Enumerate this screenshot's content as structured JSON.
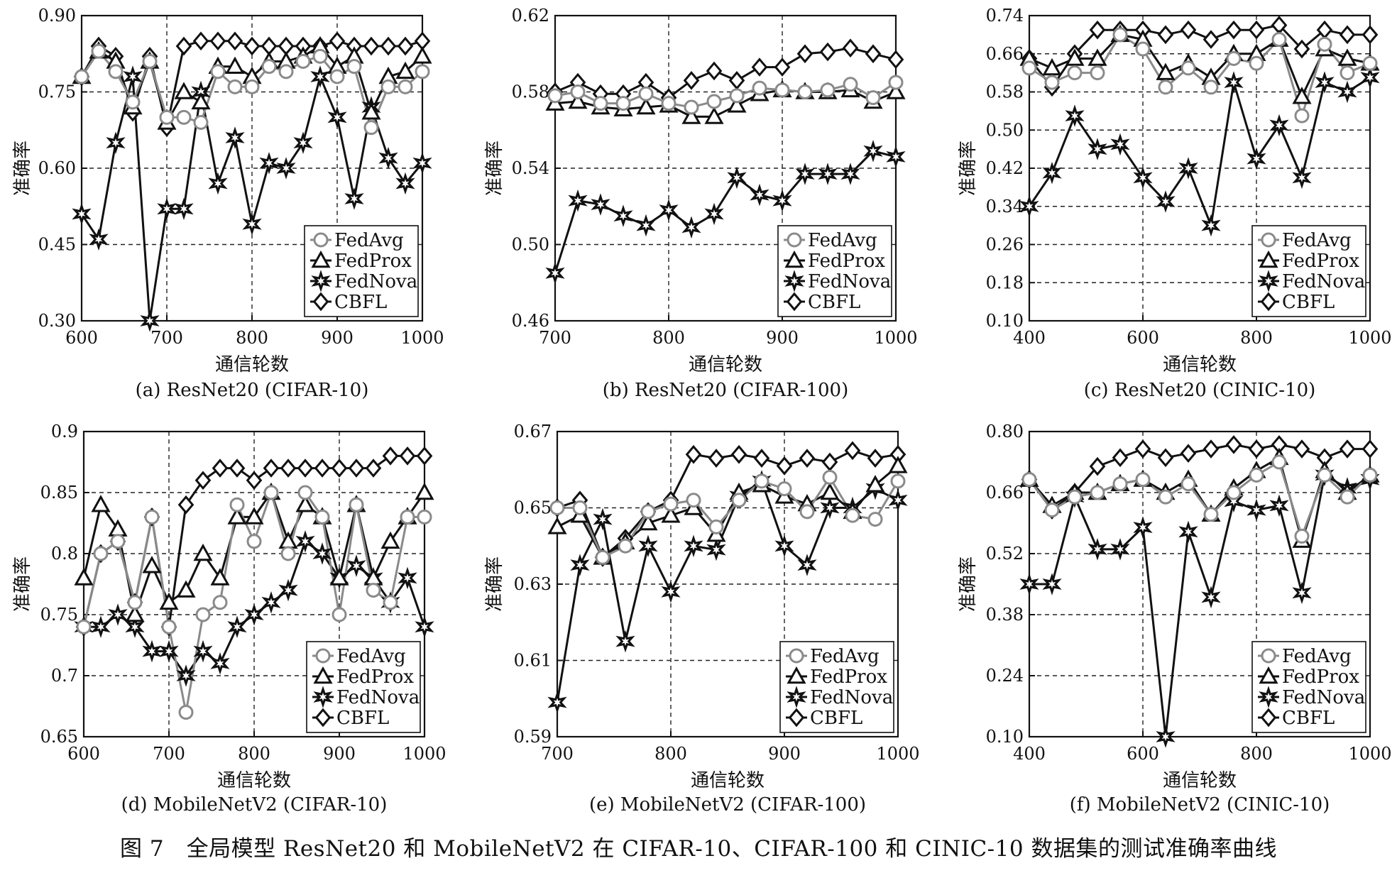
{
  "figure_caption": "图 7　全局模型 ResNet20 和 MobileNetV2 在 CIFAR-10、CIFAR-100 和 CINIC-10 数据集的测试准确率曲线",
  "legend_labels": [
    "FedAvg",
    "FedProx",
    "FedNova",
    "CBFL"
  ],
  "chart_data": [
    {
      "type": "line",
      "caption": "(a) ResNet20 (CIFAR-10)",
      "xlabel": "通信轮数",
      "ylabel": "准确率",
      "xlim": [
        600,
        1000
      ],
      "ylim": [
        0.3,
        0.9
      ],
      "xticks": [
        600,
        700,
        800,
        900,
        1000
      ],
      "yticks": [
        "0.30",
        "0.45",
        "0.60",
        "0.75",
        "0.90"
      ],
      "grid": true,
      "legend_position": "bottom-right",
      "x": [
        600,
        620,
        640,
        660,
        680,
        700,
        720,
        740,
        760,
        780,
        800,
        820,
        840,
        860,
        880,
        900,
        920,
        940,
        960,
        980,
        1000
      ],
      "series": [
        {
          "name": "FedAvg",
          "marker": "circle",
          "color": "#8a8a8a",
          "values": [
            0.78,
            0.83,
            0.79,
            0.73,
            0.81,
            0.7,
            0.7,
            0.69,
            0.79,
            0.76,
            0.76,
            0.8,
            0.79,
            0.81,
            0.82,
            0.78,
            0.8,
            0.68,
            0.76,
            0.76,
            0.79
          ]
        },
        {
          "name": "FedProx",
          "marker": "triangle",
          "color": "#111111",
          "values": [
            0.78,
            0.83,
            0.81,
            0.72,
            0.81,
            0.69,
            0.75,
            0.73,
            0.8,
            0.8,
            0.78,
            0.81,
            0.81,
            0.82,
            0.84,
            0.8,
            0.82,
            0.71,
            0.78,
            0.79,
            0.82
          ]
        },
        {
          "name": "FedNova",
          "marker": "star",
          "color": "#111111",
          "values": [
            0.51,
            0.46,
            0.65,
            0.78,
            0.3,
            0.52,
            0.52,
            0.75,
            0.57,
            0.66,
            0.49,
            0.61,
            0.6,
            0.65,
            0.78,
            0.7,
            0.54,
            0.72,
            0.62,
            0.57,
            0.61
          ]
        },
        {
          "name": "CBFL",
          "marker": "diamond",
          "color": "#111111",
          "values": [
            0.78,
            0.84,
            0.82,
            0.71,
            0.82,
            0.68,
            0.84,
            0.85,
            0.85,
            0.85,
            0.84,
            0.84,
            0.84,
            0.84,
            0.84,
            0.85,
            0.84,
            0.84,
            0.84,
            0.84,
            0.85
          ]
        }
      ]
    },
    {
      "type": "line",
      "caption": "(b) ResNet20 (CIFAR-100)",
      "xlabel": "通信轮数",
      "ylabel": "准确率",
      "xlim": [
        700,
        1000
      ],
      "ylim": [
        0.46,
        0.62
      ],
      "xticks": [
        700,
        800,
        900,
        1000
      ],
      "yticks": [
        "0.46",
        "0.50",
        "0.54",
        "0.58",
        "0.62"
      ],
      "grid": true,
      "legend_position": "bottom-right",
      "x": [
        700,
        720,
        740,
        760,
        780,
        800,
        820,
        840,
        860,
        880,
        900,
        920,
        940,
        960,
        980,
        1000
      ],
      "series": [
        {
          "name": "FedAvg",
          "marker": "circle",
          "color": "#8a8a8a",
          "values": [
            0.578,
            0.58,
            0.574,
            0.574,
            0.579,
            0.574,
            0.572,
            0.575,
            0.578,
            0.582,
            0.581,
            0.58,
            0.581,
            0.584,
            0.577,
            0.585
          ]
        },
        {
          "name": "FedProx",
          "marker": "triangle",
          "color": "#111111",
          "values": [
            0.574,
            0.575,
            0.572,
            0.571,
            0.572,
            0.573,
            0.567,
            0.567,
            0.573,
            0.579,
            0.581,
            0.58,
            0.58,
            0.581,
            0.575,
            0.58
          ]
        },
        {
          "name": "FedNova",
          "marker": "star",
          "color": "#111111",
          "values": [
            0.485,
            0.523,
            0.521,
            0.515,
            0.51,
            0.518,
            0.509,
            0.516,
            0.535,
            0.526,
            0.523,
            0.537,
            0.537,
            0.537,
            0.549,
            0.546
          ]
        },
        {
          "name": "CBFL",
          "marker": "diamond",
          "color": "#111111",
          "values": [
            0.58,
            0.585,
            0.579,
            0.579,
            0.585,
            0.577,
            0.586,
            0.591,
            0.586,
            0.593,
            0.593,
            0.6,
            0.601,
            0.603,
            0.6,
            0.597
          ]
        }
      ]
    },
    {
      "type": "line",
      "caption": "(c) ResNet20 (CINIC-10)",
      "xlabel": "通信轮数",
      "ylabel": "准确率",
      "xlim": [
        400,
        1000
      ],
      "ylim": [
        0.1,
        0.74
      ],
      "xticks": [
        400,
        600,
        800,
        1000
      ],
      "yticks": [
        "0.10",
        "0.18",
        "0.26",
        "0.34",
        "0.42",
        "0.50",
        "0.58",
        "0.66",
        "0.74"
      ],
      "grid": true,
      "legend_position": "bottom-right",
      "x": [
        400,
        440,
        480,
        520,
        560,
        600,
        640,
        680,
        720,
        760,
        800,
        840,
        880,
        920,
        960,
        1000
      ],
      "series": [
        {
          "name": "FedAvg",
          "marker": "circle",
          "color": "#8a8a8a",
          "values": [
            0.63,
            0.6,
            0.62,
            0.62,
            0.7,
            0.67,
            0.59,
            0.63,
            0.59,
            0.65,
            0.64,
            0.69,
            0.53,
            0.68,
            0.62,
            0.64
          ]
        },
        {
          "name": "FedProx",
          "marker": "triangle",
          "color": "#111111",
          "values": [
            0.65,
            0.63,
            0.65,
            0.65,
            0.7,
            0.69,
            0.62,
            0.64,
            0.61,
            0.66,
            0.66,
            0.69,
            0.57,
            0.67,
            0.65,
            0.64
          ]
        },
        {
          "name": "FedNova",
          "marker": "star",
          "color": "#111111",
          "values": [
            0.34,
            0.41,
            0.53,
            0.46,
            0.47,
            0.4,
            0.35,
            0.42,
            0.3,
            0.6,
            0.44,
            0.51,
            0.4,
            0.6,
            0.58,
            0.61
          ]
        },
        {
          "name": "CBFL",
          "marker": "diamond",
          "color": "#111111",
          "values": [
            0.65,
            0.59,
            0.66,
            0.71,
            0.71,
            0.71,
            0.7,
            0.71,
            0.69,
            0.71,
            0.71,
            0.72,
            0.67,
            0.71,
            0.7,
            0.7
          ]
        }
      ]
    },
    {
      "type": "line",
      "caption": "(d) MobileNetV2 (CIFAR-10)",
      "xlabel": "通信轮数",
      "ylabel": "准确率",
      "xlim": [
        600,
        1000
      ],
      "ylim": [
        0.65,
        0.9
      ],
      "xticks": [
        600,
        700,
        800,
        900,
        1000
      ],
      "yticks": [
        "0.65",
        "0.7",
        "0.75",
        "0.8",
        "0.85",
        "0.9"
      ],
      "grid": true,
      "legend_position": "bottom-right",
      "x": [
        600,
        620,
        640,
        660,
        680,
        700,
        720,
        740,
        760,
        780,
        800,
        820,
        840,
        860,
        880,
        900,
        920,
        940,
        960,
        980,
        1000
      ],
      "series": [
        {
          "name": "FedAvg",
          "marker": "circle",
          "color": "#8a8a8a",
          "values": [
            0.74,
            0.8,
            0.81,
            0.76,
            0.83,
            0.74,
            0.67,
            0.75,
            0.76,
            0.84,
            0.81,
            0.85,
            0.8,
            0.85,
            0.83,
            0.75,
            0.84,
            0.77,
            0.76,
            0.83,
            0.83
          ]
        },
        {
          "name": "FedProx",
          "marker": "triangle",
          "color": "#111111",
          "values": [
            0.78,
            0.84,
            0.82,
            0.75,
            0.79,
            0.76,
            0.77,
            0.8,
            0.78,
            0.83,
            0.83,
            0.85,
            0.81,
            0.84,
            0.83,
            0.78,
            0.84,
            0.78,
            0.81,
            0.83,
            0.85
          ]
        },
        {
          "name": "FedNova",
          "marker": "star",
          "color": "#111111",
          "values": [
            0.74,
            0.74,
            0.75,
            0.74,
            0.72,
            0.72,
            0.7,
            0.72,
            0.71,
            0.74,
            0.75,
            0.76,
            0.77,
            0.81,
            0.8,
            0.78,
            0.79,
            0.78,
            0.76,
            0.78,
            0.74
          ]
        },
        {
          "name": "CBFL",
          "marker": "diamond",
          "color": "#111111",
          "values": [
            0.74,
            0.8,
            0.81,
            0.76,
            0.83,
            0.74,
            0.84,
            0.86,
            0.87,
            0.87,
            0.86,
            0.87,
            0.87,
            0.87,
            0.87,
            0.87,
            0.87,
            0.87,
            0.88,
            0.88,
            0.88
          ]
        }
      ]
    },
    {
      "type": "line",
      "caption": "(e) MobileNetV2 (CIFAR-100)",
      "xlabel": "通信轮数",
      "ylabel": "准确率",
      "xlim": [
        700,
        1000
      ],
      "ylim": [
        0.59,
        0.67
      ],
      "xticks": [
        700,
        800,
        900,
        1000
      ],
      "yticks": [
        "0.59",
        "0.61",
        "0.63",
        "0.65",
        "0.67"
      ],
      "grid": true,
      "legend_position": "bottom-right",
      "x": [
        700,
        720,
        740,
        760,
        780,
        800,
        820,
        840,
        860,
        880,
        900,
        920,
        940,
        960,
        980,
        1000
      ],
      "series": [
        {
          "name": "FedAvg",
          "marker": "circle",
          "color": "#8a8a8a",
          "values": [
            0.65,
            0.65,
            0.637,
            0.64,
            0.649,
            0.651,
            0.652,
            0.645,
            0.652,
            0.657,
            0.655,
            0.649,
            0.658,
            0.648,
            0.647,
            0.657
          ]
        },
        {
          "name": "FedProx",
          "marker": "triangle",
          "color": "#111111",
          "values": [
            0.645,
            0.648,
            0.637,
            0.641,
            0.646,
            0.648,
            0.65,
            0.643,
            0.654,
            0.656,
            0.653,
            0.651,
            0.654,
            0.649,
            0.656,
            0.661
          ]
        },
        {
          "name": "FedNova",
          "marker": "star",
          "color": "#111111",
          "values": [
            0.599,
            0.635,
            0.647,
            0.615,
            0.64,
            0.628,
            0.64,
            0.639,
            0.653,
            0.657,
            0.64,
            0.635,
            0.65,
            0.65,
            0.655,
            0.652
          ]
        },
        {
          "name": "CBFL",
          "marker": "diamond",
          "color": "#111111",
          "values": [
            0.65,
            0.652,
            0.637,
            0.642,
            0.649,
            0.652,
            0.664,
            0.663,
            0.664,
            0.663,
            0.661,
            0.663,
            0.662,
            0.665,
            0.663,
            0.664
          ]
        }
      ]
    },
    {
      "type": "line",
      "caption": "(f) MobileNetV2 (CINIC-10)",
      "xlabel": "通信轮数",
      "ylabel": "准确率",
      "xlim": [
        400,
        1000
      ],
      "ylim": [
        0.1,
        0.8
      ],
      "xticks": [
        400,
        600,
        800,
        1000
      ],
      "yticks": [
        "0.10",
        "0.24",
        "0.38",
        "0.52",
        "0.66",
        "0.80"
      ],
      "grid": true,
      "legend_position": "bottom-right",
      "x": [
        400,
        440,
        480,
        520,
        560,
        600,
        640,
        680,
        720,
        760,
        800,
        840,
        880,
        920,
        960,
        1000
      ],
      "series": [
        {
          "name": "FedAvg",
          "marker": "circle",
          "color": "#8a8a8a",
          "values": [
            0.69,
            0.62,
            0.65,
            0.66,
            0.68,
            0.69,
            0.65,
            0.68,
            0.61,
            0.66,
            0.7,
            0.73,
            0.56,
            0.7,
            0.65,
            0.7
          ]
        },
        {
          "name": "FedProx",
          "marker": "triangle",
          "color": "#111111",
          "values": [
            0.69,
            0.63,
            0.66,
            0.66,
            0.68,
            0.69,
            0.66,
            0.69,
            0.61,
            0.67,
            0.71,
            0.74,
            0.55,
            0.71,
            0.66,
            0.7
          ]
        },
        {
          "name": "FedNova",
          "marker": "star",
          "color": "#111111",
          "values": [
            0.45,
            0.45,
            0.65,
            0.53,
            0.53,
            0.58,
            0.1,
            0.57,
            0.42,
            0.64,
            0.62,
            0.63,
            0.43,
            0.7,
            0.67,
            0.69
          ]
        },
        {
          "name": "CBFL",
          "marker": "diamond",
          "color": "#111111",
          "values": [
            0.69,
            0.62,
            0.66,
            0.72,
            0.74,
            0.76,
            0.74,
            0.75,
            0.76,
            0.77,
            0.76,
            0.77,
            0.76,
            0.74,
            0.76,
            0.76
          ]
        }
      ]
    }
  ]
}
